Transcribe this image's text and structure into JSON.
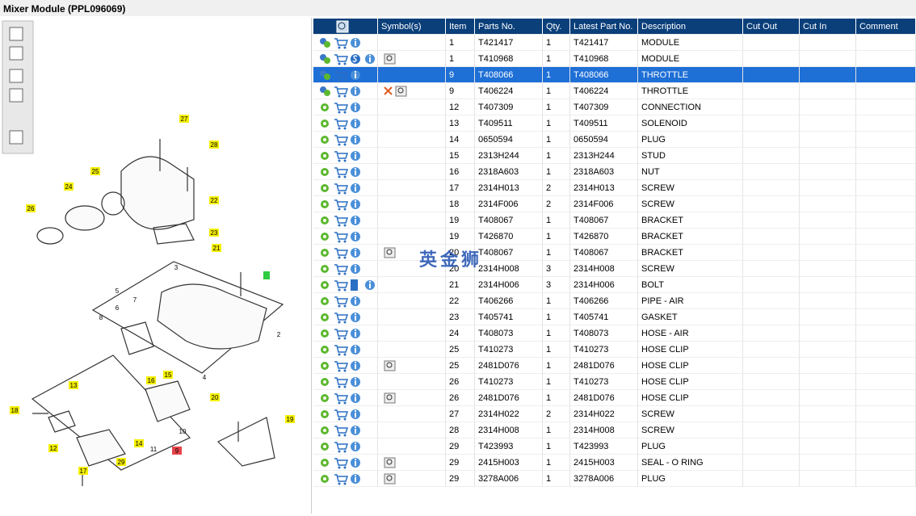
{
  "header": {
    "title": "Mixer Module (PPL096069)"
  },
  "diagram": {
    "callouts": [
      "27",
      "28",
      "25",
      "24",
      "22",
      "26",
      "23",
      "21",
      "3",
      "5",
      "6",
      "7",
      "8",
      "2",
      "4",
      "16",
      "15",
      "13",
      "18",
      "20",
      "19",
      "10",
      "9",
      "12",
      "14",
      "11",
      "17",
      "29"
    ]
  },
  "watermark": "英金狮",
  "table": {
    "columns": [
      "Symbol(s)",
      "Item",
      "Parts No.",
      "Qty.",
      "Latest Part No.",
      "Description",
      "Cut Out",
      "Cut In",
      "Comment"
    ],
    "rows": [
      [
        "1",
        "T421417",
        "1",
        "T421417",
        "MODULE"
      ],
      [
        "1",
        "T410968",
        "1",
        "T410968",
        "MODULE"
      ],
      [
        "9",
        "T408066",
        "1",
        "T408066",
        "THROTTLE"
      ],
      [
        "9",
        "T406224",
        "1",
        "T406224",
        "THROTTLE"
      ],
      [
        "12",
        "T407309",
        "1",
        "T407309",
        "CONNECTION"
      ],
      [
        "13",
        "T409511",
        "1",
        "T409511",
        "SOLENOID"
      ],
      [
        "14",
        "0650594",
        "1",
        "0650594",
        "PLUG"
      ],
      [
        "15",
        "2313H244",
        "1",
        "2313H244",
        "STUD"
      ],
      [
        "16",
        "2318A603",
        "1",
        "2318A603",
        "NUT"
      ],
      [
        "17",
        "2314H013",
        "2",
        "2314H013",
        "SCREW"
      ],
      [
        "18",
        "2314F006",
        "2",
        "2314F006",
        "SCREW"
      ],
      [
        "19",
        "T408067",
        "1",
        "T408067",
        "BRACKET"
      ],
      [
        "19",
        "T426870",
        "1",
        "T426870",
        "BRACKET"
      ],
      [
        "20",
        "T408067",
        "1",
        "T408067",
        "BRACKET"
      ],
      [
        "20",
        "2314H008",
        "3",
        "2314H008",
        "SCREW"
      ],
      [
        "21",
        "2314H006",
        "3",
        "2314H006",
        "BOLT"
      ],
      [
        "22",
        "T406266",
        "1",
        "T406266",
        "PIPE - AIR"
      ],
      [
        "23",
        "T405741",
        "1",
        "T405741",
        "GASKET"
      ],
      [
        "24",
        "T408073",
        "1",
        "T408073",
        "HOSE - AIR"
      ],
      [
        "25",
        "T410273",
        "1",
        "T410273",
        "HOSE CLIP"
      ],
      [
        "25",
        "2481D076",
        "1",
        "2481D076",
        "HOSE CLIP"
      ],
      [
        "26",
        "T410273",
        "1",
        "T410273",
        "HOSE CLIP"
      ],
      [
        "26",
        "2481D076",
        "1",
        "2481D076",
        "HOSE CLIP"
      ],
      [
        "27",
        "2314H022",
        "2",
        "2314H022",
        "SCREW"
      ],
      [
        "28",
        "2314H008",
        "1",
        "2314H008",
        "SCREW"
      ],
      [
        "29",
        "T423993",
        "1",
        "T423993",
        "PLUG"
      ],
      [
        "29",
        "2415H003",
        "1",
        "2415H003",
        "SEAL - O RING"
      ],
      [
        "29",
        "3278A006",
        "1",
        "3278A006",
        "PLUG"
      ]
    ]
  }
}
